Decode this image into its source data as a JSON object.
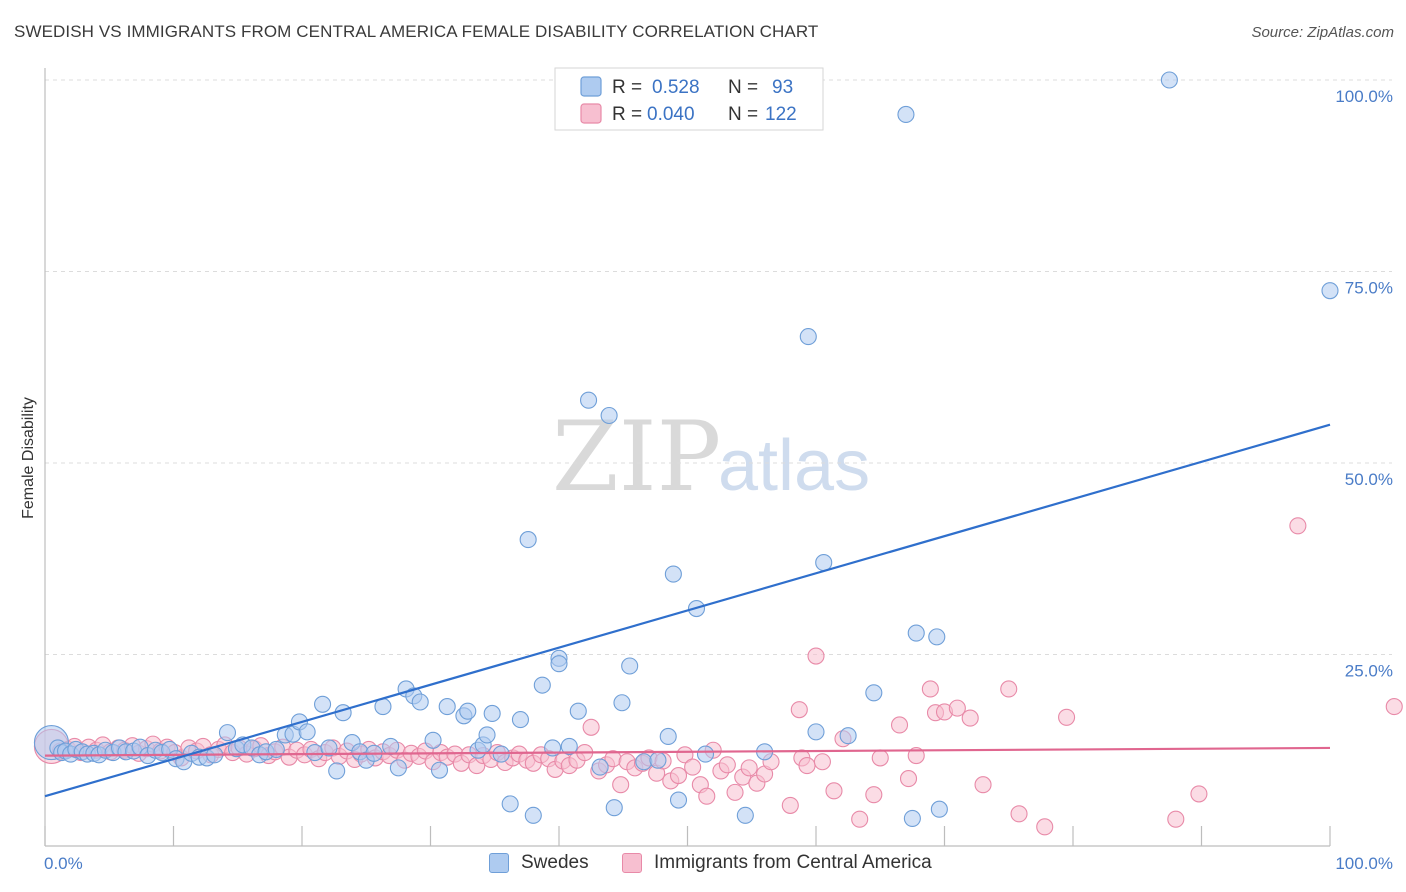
{
  "header": {
    "title": "SWEDISH VS IMMIGRANTS FROM CENTRAL AMERICA FEMALE DISABILITY CORRELATION CHART",
    "source": "Source: ZipAtlas.com"
  },
  "watermark": {
    "zip": "ZIP",
    "atlas": "atlas"
  },
  "legend_box": {
    "rows": [
      {
        "r_label": "R =",
        "r_value": "0.528",
        "n_label": "N =",
        "n_value": "93"
      },
      {
        "r_label": "R =",
        "r_value": "0.040",
        "n_label": "N =",
        "n_value": "122"
      }
    ]
  },
  "colors": {
    "blue_fill": "#aecbf0",
    "blue_stroke": "#6f9fd8",
    "blue_line": "#2f6fcc",
    "pink_fill": "#f7bfd0",
    "pink_stroke": "#e88aa8",
    "pink_line": "#e0668f",
    "tick_text": "#4a7cc7",
    "grid": "#dcdcdc"
  },
  "chart_data": {
    "type": "scatter",
    "title": "SWEDISH VS IMMIGRANTS FROM CENTRAL AMERICA FEMALE DISABILITY CORRELATION CHART",
    "xlabel": "",
    "ylabel": "Female Disability",
    "xlim": [
      0,
      100
    ],
    "ylim": [
      0,
      105
    ],
    "x_tick_labels": [
      "0.0%",
      "100.0%"
    ],
    "y_ticks": [
      25,
      50,
      75,
      100
    ],
    "y_tick_labels": [
      "25.0%",
      "50.0%",
      "75.0%",
      "100.0%"
    ],
    "grid": "horizontal dashed",
    "legend": "top-center (R/N stats) and bottom-center (series names)",
    "series": [
      {
        "name": "Swedes",
        "R": 0.528,
        "N": 93,
        "trend": {
          "x": [
            0,
            100
          ],
          "y": [
            6.5,
            55.0
          ]
        },
        "points": [
          {
            "x": 0.5,
            "y": 13.5,
            "big": true
          },
          {
            "x": 1.0,
            "y": 12.8
          },
          {
            "x": 1.3,
            "y": 12.2
          },
          {
            "x": 1.6,
            "y": 12.4
          },
          {
            "x": 2.0,
            "y": 12.0
          },
          {
            "x": 2.4,
            "y": 12.6
          },
          {
            "x": 2.9,
            "y": 12.3
          },
          {
            "x": 3.3,
            "y": 12.0
          },
          {
            "x": 3.8,
            "y": 12.1
          },
          {
            "x": 4.2,
            "y": 11.9
          },
          {
            "x": 4.7,
            "y": 12.5
          },
          {
            "x": 5.3,
            "y": 12.2
          },
          {
            "x": 5.8,
            "y": 12.8
          },
          {
            "x": 6.3,
            "y": 12.3
          },
          {
            "x": 6.9,
            "y": 12.4
          },
          {
            "x": 7.4,
            "y": 12.9
          },
          {
            "x": 8.0,
            "y": 11.8
          },
          {
            "x": 8.6,
            "y": 12.5
          },
          {
            "x": 9.1,
            "y": 12.2
          },
          {
            "x": 9.7,
            "y": 12.6
          },
          {
            "x": 10.2,
            "y": 11.4
          },
          {
            "x": 10.8,
            "y": 11.0
          },
          {
            "x": 11.4,
            "y": 12.1
          },
          {
            "x": 12.0,
            "y": 11.6
          },
          {
            "x": 12.6,
            "y": 11.5
          },
          {
            "x": 13.2,
            "y": 11.9
          },
          {
            "x": 14.2,
            "y": 14.8
          },
          {
            "x": 14.9,
            "y": 12.7
          },
          {
            "x": 15.4,
            "y": 13.2
          },
          {
            "x": 16.1,
            "y": 12.8
          },
          {
            "x": 16.7,
            "y": 11.9
          },
          {
            "x": 17.2,
            "y": 12.3
          },
          {
            "x": 18.0,
            "y": 12.6
          },
          {
            "x": 18.7,
            "y": 14.5
          },
          {
            "x": 19.3,
            "y": 14.6
          },
          {
            "x": 19.8,
            "y": 16.2
          },
          {
            "x": 20.4,
            "y": 14.9
          },
          {
            "x": 21.0,
            "y": 12.2
          },
          {
            "x": 21.6,
            "y": 18.5
          },
          {
            "x": 22.1,
            "y": 12.8
          },
          {
            "x": 22.7,
            "y": 9.8
          },
          {
            "x": 23.2,
            "y": 17.4
          },
          {
            "x": 23.9,
            "y": 13.5
          },
          {
            "x": 24.5,
            "y": 12.3
          },
          {
            "x": 25.0,
            "y": 11.2
          },
          {
            "x": 25.6,
            "y": 12.1
          },
          {
            "x": 26.3,
            "y": 18.2
          },
          {
            "x": 26.9,
            "y": 13.0
          },
          {
            "x": 27.5,
            "y": 10.2
          },
          {
            "x": 28.1,
            "y": 20.5
          },
          {
            "x": 28.7,
            "y": 19.6
          },
          {
            "x": 29.2,
            "y": 18.8
          },
          {
            "x": 30.2,
            "y": 13.8
          },
          {
            "x": 30.7,
            "y": 9.9
          },
          {
            "x": 31.3,
            "y": 18.2
          },
          {
            "x": 32.6,
            "y": 17.0
          },
          {
            "x": 32.9,
            "y": 17.6
          },
          {
            "x": 33.7,
            "y": 12.5
          },
          {
            "x": 34.1,
            "y": 13.2
          },
          {
            "x": 34.4,
            "y": 14.5
          },
          {
            "x": 34.8,
            "y": 17.3
          },
          {
            "x": 35.5,
            "y": 12.0
          },
          {
            "x": 36.2,
            "y": 5.5
          },
          {
            "x": 37.0,
            "y": 16.5
          },
          {
            "x": 37.6,
            "y": 40.0
          },
          {
            "x": 38.0,
            "y": 4.0
          },
          {
            "x": 38.7,
            "y": 21.0
          },
          {
            "x": 39.5,
            "y": 12.8
          },
          {
            "x": 40.0,
            "y": 24.5
          },
          {
            "x": 40.0,
            "y": 23.8
          },
          {
            "x": 40.8,
            "y": 13.0
          },
          {
            "x": 41.5,
            "y": 17.6
          },
          {
            "x": 42.3,
            "y": 58.2
          },
          {
            "x": 43.2,
            "y": 10.3
          },
          {
            "x": 43.9,
            "y": 56.2
          },
          {
            "x": 44.3,
            "y": 5.0
          },
          {
            "x": 44.9,
            "y": 18.7
          },
          {
            "x": 45.5,
            "y": 23.5
          },
          {
            "x": 46.6,
            "y": 11.0
          },
          {
            "x": 47.7,
            "y": 11.2
          },
          {
            "x": 48.5,
            "y": 14.3
          },
          {
            "x": 48.9,
            "y": 35.5
          },
          {
            "x": 49.3,
            "y": 6.0
          },
          {
            "x": 50.7,
            "y": 31.0
          },
          {
            "x": 51.4,
            "y": 12.0
          },
          {
            "x": 54.5,
            "y": 4.0
          },
          {
            "x": 56.0,
            "y": 12.3
          },
          {
            "x": 59.4,
            "y": 66.5
          },
          {
            "x": 60.0,
            "y": 14.9
          },
          {
            "x": 60.6,
            "y": 37.0
          },
          {
            "x": 62.5,
            "y": 14.4
          },
          {
            "x": 64.5,
            "y": 20.0
          },
          {
            "x": 67.0,
            "y": 95.5
          },
          {
            "x": 67.5,
            "y": 3.6
          },
          {
            "x": 67.8,
            "y": 27.8
          },
          {
            "x": 69.4,
            "y": 27.3
          },
          {
            "x": 69.6,
            "y": 4.8
          },
          {
            "x": 87.5,
            "y": 100.0
          },
          {
            "x": 100.0,
            "y": 72.5
          }
        ]
      },
      {
        "name": "Immigrants from Central America",
        "R": 0.04,
        "N": 122,
        "trend": {
          "x": [
            0,
            100
          ],
          "y": [
            11.8,
            12.8
          ]
        },
        "points": [
          {
            "x": 0.5,
            "y": 13.0,
            "big": true
          },
          {
            "x": 1.2,
            "y": 12.4
          },
          {
            "x": 1.8,
            "y": 12.6
          },
          {
            "x": 2.3,
            "y": 13.0
          },
          {
            "x": 2.8,
            "y": 12.2
          },
          {
            "x": 3.4,
            "y": 12.9
          },
          {
            "x": 4.0,
            "y": 12.5
          },
          {
            "x": 4.5,
            "y": 13.2
          },
          {
            "x": 5.1,
            "y": 12.3
          },
          {
            "x": 5.7,
            "y": 12.8
          },
          {
            "x": 6.2,
            "y": 12.5
          },
          {
            "x": 6.8,
            "y": 13.1
          },
          {
            "x": 7.3,
            "y": 12.1
          },
          {
            "x": 7.9,
            "y": 12.7
          },
          {
            "x": 8.4,
            "y": 13.3
          },
          {
            "x": 9.0,
            "y": 12.4
          },
          {
            "x": 9.5,
            "y": 12.9
          },
          {
            "x": 10.1,
            "y": 12.2
          },
          {
            "x": 10.6,
            "y": 11.5
          },
          {
            "x": 11.2,
            "y": 12.8
          },
          {
            "x": 11.8,
            "y": 12.4
          },
          {
            "x": 12.3,
            "y": 13.0
          },
          {
            "x": 12.9,
            "y": 11.9
          },
          {
            "x": 13.5,
            "y": 12.6
          },
          {
            "x": 14.0,
            "y": 13.2
          },
          {
            "x": 14.6,
            "y": 12.2
          },
          {
            "x": 15.1,
            "y": 12.8
          },
          {
            "x": 15.7,
            "y": 12.0
          },
          {
            "x": 16.3,
            "y": 12.7
          },
          {
            "x": 16.8,
            "y": 13.1
          },
          {
            "x": 17.4,
            "y": 11.8
          },
          {
            "x": 17.9,
            "y": 12.3
          },
          {
            "x": 18.5,
            "y": 12.9
          },
          {
            "x": 19.0,
            "y": 11.6
          },
          {
            "x": 19.6,
            "y": 12.5
          },
          {
            "x": 20.2,
            "y": 11.9
          },
          {
            "x": 20.7,
            "y": 12.6
          },
          {
            "x": 21.3,
            "y": 11.4
          },
          {
            "x": 21.8,
            "y": 12.2
          },
          {
            "x": 22.4,
            "y": 12.8
          },
          {
            "x": 22.9,
            "y": 11.7
          },
          {
            "x": 23.5,
            "y": 12.4
          },
          {
            "x": 24.1,
            "y": 11.3
          },
          {
            "x": 24.6,
            "y": 12.0
          },
          {
            "x": 25.2,
            "y": 12.6
          },
          {
            "x": 25.7,
            "y": 11.5
          },
          {
            "x": 26.3,
            "y": 12.3
          },
          {
            "x": 26.8,
            "y": 11.8
          },
          {
            "x": 27.4,
            "y": 12.5
          },
          {
            "x": 28.0,
            "y": 11.2
          },
          {
            "x": 28.5,
            "y": 12.1
          },
          {
            "x": 29.1,
            "y": 11.7
          },
          {
            "x": 29.6,
            "y": 12.4
          },
          {
            "x": 30.2,
            "y": 11.0
          },
          {
            "x": 30.8,
            "y": 12.2
          },
          {
            "x": 31.3,
            "y": 11.6
          },
          {
            "x": 31.9,
            "y": 12.0
          },
          {
            "x": 32.4,
            "y": 10.8
          },
          {
            "x": 33.0,
            "y": 11.9
          },
          {
            "x": 33.6,
            "y": 10.5
          },
          {
            "x": 34.1,
            "y": 11.8
          },
          {
            "x": 34.7,
            "y": 11.3
          },
          {
            "x": 35.2,
            "y": 12.2
          },
          {
            "x": 35.8,
            "y": 10.9
          },
          {
            "x": 36.4,
            "y": 11.5
          },
          {
            "x": 36.9,
            "y": 12.0
          },
          {
            "x": 37.5,
            "y": 11.2
          },
          {
            "x": 38.0,
            "y": 10.8
          },
          {
            "x": 38.6,
            "y": 11.9
          },
          {
            "x": 39.2,
            "y": 11.4
          },
          {
            "x": 39.7,
            "y": 10.0
          },
          {
            "x": 40.3,
            "y": 11.1
          },
          {
            "x": 40.8,
            "y": 10.5
          },
          {
            "x": 41.4,
            "y": 11.2
          },
          {
            "x": 42.0,
            "y": 12.2
          },
          {
            "x": 42.5,
            "y": 15.5
          },
          {
            "x": 43.1,
            "y": 9.8
          },
          {
            "x": 43.7,
            "y": 10.6
          },
          {
            "x": 44.2,
            "y": 11.4
          },
          {
            "x": 44.8,
            "y": 8.0
          },
          {
            "x": 45.3,
            "y": 11.0
          },
          {
            "x": 45.9,
            "y": 10.2
          },
          {
            "x": 46.5,
            "y": 10.8
          },
          {
            "x": 47.0,
            "y": 11.5
          },
          {
            "x": 47.6,
            "y": 9.5
          },
          {
            "x": 48.1,
            "y": 11.1
          },
          {
            "x": 48.7,
            "y": 8.5
          },
          {
            "x": 49.3,
            "y": 9.2
          },
          {
            "x": 49.8,
            "y": 11.9
          },
          {
            "x": 50.4,
            "y": 10.3
          },
          {
            "x": 51.0,
            "y": 8.0
          },
          {
            "x": 51.5,
            "y": 6.5
          },
          {
            "x": 52.0,
            "y": 12.5
          },
          {
            "x": 52.6,
            "y": 9.8
          },
          {
            "x": 53.1,
            "y": 10.6
          },
          {
            "x": 53.7,
            "y": 7.0
          },
          {
            "x": 54.3,
            "y": 9.0
          },
          {
            "x": 54.8,
            "y": 10.2
          },
          {
            "x": 55.4,
            "y": 8.2
          },
          {
            "x": 56.0,
            "y": 9.4
          },
          {
            "x": 56.5,
            "y": 11.0
          },
          {
            "x": 58.0,
            "y": 5.3
          },
          {
            "x": 58.7,
            "y": 17.8
          },
          {
            "x": 58.9,
            "y": 11.5
          },
          {
            "x": 59.3,
            "y": 10.5
          },
          {
            "x": 60.0,
            "y": 24.8
          },
          {
            "x": 60.5,
            "y": 11.0
          },
          {
            "x": 61.4,
            "y": 7.2
          },
          {
            "x": 62.1,
            "y": 14.0
          },
          {
            "x": 63.4,
            "y": 3.5
          },
          {
            "x": 64.5,
            "y": 6.7
          },
          {
            "x": 65.0,
            "y": 11.5
          },
          {
            "x": 66.5,
            "y": 15.8
          },
          {
            "x": 67.2,
            "y": 8.8
          },
          {
            "x": 67.8,
            "y": 11.8
          },
          {
            "x": 68.9,
            "y": 20.5
          },
          {
            "x": 69.3,
            "y": 17.4
          },
          {
            "x": 70.0,
            "y": 17.5
          },
          {
            "x": 71.0,
            "y": 18.0
          },
          {
            "x": 72.0,
            "y": 16.7
          },
          {
            "x": 73.0,
            "y": 8.0
          },
          {
            "x": 75.0,
            "y": 20.5
          },
          {
            "x": 75.8,
            "y": 4.2
          },
          {
            "x": 77.8,
            "y": 2.5
          },
          {
            "x": 79.5,
            "y": 16.8
          },
          {
            "x": 88.0,
            "y": 3.5
          },
          {
            "x": 89.8,
            "y": 6.8
          },
          {
            "x": 97.5,
            "y": 41.8
          },
          {
            "x": 105.0,
            "y": 18.2
          }
        ]
      }
    ]
  }
}
